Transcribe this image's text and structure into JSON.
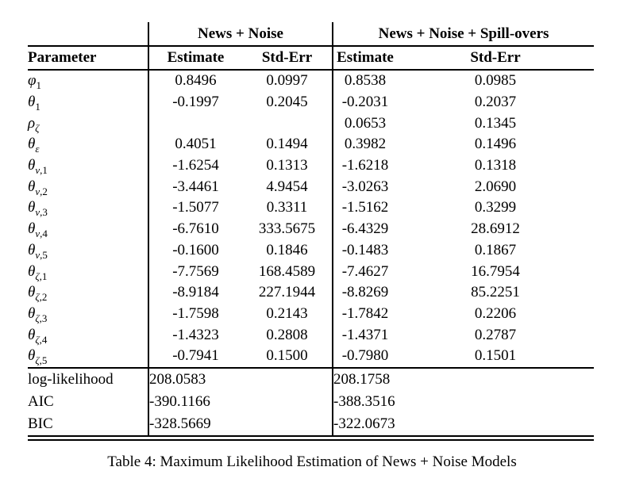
{
  "caption": "Table 4: Maximum Likelihood Estimation of News + Noise Models",
  "table": {
    "group_headers": [
      "News + Noise",
      "News + Noise + Spill-overs"
    ],
    "columns": [
      "Parameter",
      "Estimate",
      "Std-Err",
      "Estimate",
      "Std-Err"
    ],
    "parameters": [
      {
        "param": {
          "base": "φ",
          "sub": "1"
        },
        "values": [
          "0.8496",
          "0.0997",
          "0.8538",
          "0.0985"
        ]
      },
      {
        "param": {
          "base": "θ",
          "sub": "1"
        },
        "values": [
          "-0.1997",
          "0.2045",
          "-0.2031",
          "0.2037"
        ]
      },
      {
        "param": {
          "base": "ρ",
          "sub": "ζ"
        },
        "values": [
          "",
          "",
          "0.0653",
          "0.1345"
        ]
      },
      {
        "param": {
          "base": "θ",
          "sub": "ε"
        },
        "values": [
          "0.4051",
          "0.1494",
          "0.3982",
          "0.1496"
        ]
      },
      {
        "param": {
          "base": "θ",
          "sub": "ν,1"
        },
        "values": [
          "-1.6254",
          "0.1313",
          "-1.6218",
          "0.1318"
        ]
      },
      {
        "param": {
          "base": "θ",
          "sub": "ν,2"
        },
        "values": [
          "-3.4461",
          "4.9454",
          "-3.0263",
          "2.0690"
        ]
      },
      {
        "param": {
          "base": "θ",
          "sub": "ν,3"
        },
        "values": [
          "-1.5077",
          "0.3311",
          "-1.5162",
          "0.3299"
        ]
      },
      {
        "param": {
          "base": "θ",
          "sub": "ν,4"
        },
        "values": [
          "-6.7610",
          "333.5675",
          "-6.4329",
          "28.6912"
        ]
      },
      {
        "param": {
          "base": "θ",
          "sub": "ν,5"
        },
        "values": [
          "-0.1600",
          "0.1846",
          "-0.1483",
          "0.1867"
        ]
      },
      {
        "param": {
          "base": "θ",
          "sub": "ζ,1"
        },
        "values": [
          "-7.7569",
          "168.4589",
          "-7.4627",
          "16.7954"
        ]
      },
      {
        "param": {
          "base": "θ",
          "sub": "ζ,2"
        },
        "values": [
          "-8.9184",
          "227.1944",
          "-8.8269",
          "85.2251"
        ]
      },
      {
        "param": {
          "base": "θ",
          "sub": "ζ,3"
        },
        "values": [
          "-1.7598",
          "0.2143",
          "-1.7842",
          "0.2206"
        ]
      },
      {
        "param": {
          "base": "θ",
          "sub": "ζ,4"
        },
        "values": [
          "-1.4323",
          "0.2808",
          "-1.4371",
          "0.2787"
        ]
      },
      {
        "param": {
          "base": "θ",
          "sub": "ζ,5"
        },
        "values": [
          "-0.7941",
          "0.1500",
          "-0.7980",
          "0.1501"
        ]
      }
    ],
    "summary": [
      {
        "label": "log-likelihood",
        "values": [
          "208.0583",
          "208.1758"
        ]
      },
      {
        "label": "AIC",
        "values": [
          "-390.1166",
          "-388.3516"
        ]
      },
      {
        "label": "BIC",
        "values": [
          "-328.5669",
          "-322.0673"
        ]
      }
    ]
  },
  "colors": {
    "text": "#000000",
    "background": "#ffffff",
    "rule": "#000000"
  }
}
